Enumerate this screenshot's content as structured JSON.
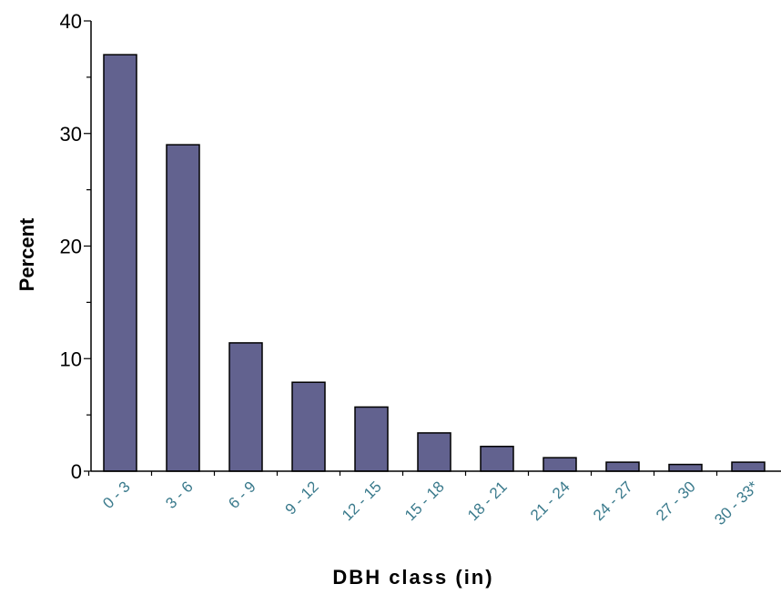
{
  "chart_data": {
    "type": "bar",
    "categories": [
      "0 - 3",
      "3 - 6",
      "6 - 9",
      "9 - 12",
      "12 - 15",
      "15 - 18",
      "18 - 21",
      "21 - 24",
      "24 - 27",
      "27 - 30",
      "30 - 33*"
    ],
    "values": [
      37.0,
      29.0,
      11.4,
      7.9,
      5.7,
      3.4,
      2.2,
      1.2,
      0.8,
      0.6,
      0.8
    ],
    "title": "",
    "xlabel": "DBH class (in)",
    "ylabel": "Percent",
    "ylim": [
      0,
      40
    ],
    "yticks": [
      0,
      10,
      20,
      30,
      40
    ],
    "grid": false,
    "colors": {
      "bar": "#62628f",
      "bar_stroke": "#000000",
      "axis": "#000000",
      "xtick_text": "#3a7a8c"
    }
  }
}
